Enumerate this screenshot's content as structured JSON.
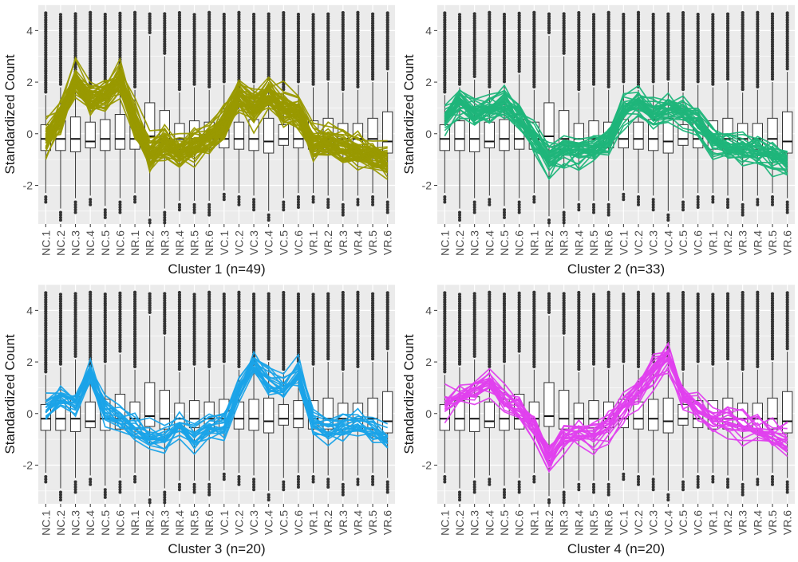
{
  "figure": {
    "colors": {
      "panel_bg": "#ebebeb",
      "grid": "#ffffff",
      "box_fill": "#ffffff",
      "box_line": "#333333",
      "outlier": "#333333",
      "axis_text": "#4d4d4d",
      "label_text": "#1a1a1a"
    },
    "icon": "chart-grid-4-panels"
  },
  "chart_data": [
    {
      "type": "line",
      "title": "",
      "xlabel": "Cluster 1 (n=49)",
      "ylabel": "Standardized Count",
      "series_color": "#999900",
      "n": 49,
      "categories": [
        "NC.1",
        "NC.2",
        "NC.3",
        "NC.4",
        "NC.5",
        "NC.6",
        "NR.1",
        "NR.2",
        "NR.3",
        "NR.4",
        "NR.5",
        "NR.6",
        "VC.1",
        "VC.2",
        "VC.3",
        "VC.4",
        "VC.5",
        "VC.6",
        "VR.1",
        "VR.2",
        "VR.3",
        "VR.4",
        "VR.5",
        "VR.6"
      ],
      "y_ticks": [
        -2,
        0,
        2,
        4
      ],
      "ylim": [
        -3.5,
        5.0
      ],
      "grid": true,
      "legend": "none",
      "profile_mean": [
        -0.2,
        0.5,
        2.0,
        1.3,
        1.4,
        2.0,
        0.4,
        -0.9,
        -0.5,
        -0.8,
        -0.5,
        -0.2,
        0.3,
        1.4,
        1.0,
        1.5,
        1.0,
        0.8,
        -0.4,
        -0.4,
        -0.6,
        -0.7,
        -0.9,
        -1.1
      ],
      "profile_spread": 0.55
    },
    {
      "type": "line",
      "title": "",
      "xlabel": "Cluster 2 (n=33)",
      "ylabel": "Standardized Count",
      "series_color": "#1fb57a",
      "n": 33,
      "categories": [
        "NC.1",
        "NC.2",
        "NC.3",
        "NC.4",
        "NC.5",
        "NC.6",
        "NR.1",
        "NR.2",
        "NR.3",
        "NR.4",
        "NR.5",
        "NR.6",
        "VC.1",
        "VC.2",
        "VC.3",
        "VC.4",
        "VC.5",
        "VC.6",
        "VR.1",
        "VR.2",
        "VR.3",
        "VR.4",
        "VR.5",
        "VR.6"
      ],
      "y_ticks": [
        -2,
        0,
        2,
        4
      ],
      "ylim": [
        -3.5,
        5.0
      ],
      "grid": true,
      "legend": "none",
      "profile_mean": [
        0.6,
        1.2,
        0.8,
        1.0,
        1.2,
        0.6,
        -0.2,
        -1.0,
        -0.6,
        -0.7,
        -0.6,
        -0.3,
        0.9,
        1.2,
        0.8,
        1.0,
        0.8,
        0.4,
        -0.3,
        -0.5,
        -0.6,
        -0.7,
        -0.9,
        -1.1
      ],
      "profile_spread": 0.5
    },
    {
      "type": "line",
      "title": "",
      "xlabel": "Cluster 3 (n=20)",
      "ylabel": "Standardized Count",
      "series_color": "#1aa3e8",
      "n": 20,
      "categories": [
        "NC.1",
        "NC.2",
        "NC.3",
        "NC.4",
        "NC.5",
        "NC.6",
        "NR.1",
        "NR.2",
        "NR.3",
        "NR.4",
        "NR.5",
        "NR.6",
        "VC.1",
        "VC.2",
        "VC.3",
        "VC.4",
        "VC.5",
        "VC.6",
        "VR.1",
        "VR.2",
        "VR.3",
        "VR.4",
        "VR.5",
        "VR.6"
      ],
      "y_ticks": [
        -2,
        0,
        2,
        4
      ],
      "ylim": [
        -3.5,
        5.0
      ],
      "grid": true,
      "legend": "none",
      "profile_mean": [
        0.2,
        0.6,
        0.4,
        1.6,
        0.2,
        -0.2,
        -0.6,
        -0.9,
        -1.0,
        -0.5,
        -0.9,
        -0.5,
        -0.4,
        0.9,
        2.0,
        1.3,
        1.0,
        1.6,
        -0.3,
        -0.6,
        -0.5,
        -0.4,
        -0.6,
        -0.9
      ],
      "profile_spread": 0.45
    },
    {
      "type": "line",
      "title": "",
      "xlabel": "Cluster 4 (n=20)",
      "ylabel": "Standardized Count",
      "series_color": "#e040ee",
      "n": 20,
      "categories": [
        "NC.1",
        "NC.2",
        "NC.3",
        "NC.4",
        "NC.5",
        "NC.6",
        "NR.1",
        "NR.2",
        "NR.3",
        "NR.4",
        "NR.5",
        "NR.6",
        "VC.1",
        "VC.2",
        "VC.3",
        "VC.4",
        "VC.5",
        "VC.6",
        "VR.1",
        "VR.2",
        "VR.3",
        "VR.4",
        "VR.5",
        "VR.6"
      ],
      "y_ticks": [
        -2,
        0,
        2,
        4
      ],
      "ylim": [
        -3.5,
        5.0
      ],
      "grid": true,
      "legend": "none",
      "profile_mean": [
        0.4,
        0.6,
        0.9,
        1.2,
        0.6,
        0.2,
        -0.5,
        -1.8,
        -0.8,
        -0.7,
        -0.8,
        -0.5,
        0.3,
        0.9,
        1.6,
        2.2,
        0.6,
        0.2,
        -0.2,
        -0.3,
        -0.5,
        -0.6,
        -0.8,
        -1.0
      ],
      "profile_spread": 0.5
    }
  ],
  "boxplot_stats": {
    "categories": [
      "NC.1",
      "NC.2",
      "NC.3",
      "NC.4",
      "NC.5",
      "NC.6",
      "NR.1",
      "NR.2",
      "NR.3",
      "NR.4",
      "NR.5",
      "NR.6",
      "VC.1",
      "VC.2",
      "VC.3",
      "VC.4",
      "VC.5",
      "VC.6",
      "VR.1",
      "VR.2",
      "VR.3",
      "VR.4",
      "VR.5",
      "VR.6"
    ],
    "median": [
      -0.2,
      -0.2,
      -0.2,
      -0.3,
      -0.2,
      -0.2,
      -0.2,
      -0.1,
      -0.2,
      -0.2,
      -0.2,
      -0.2,
      -0.2,
      -0.2,
      -0.2,
      -0.3,
      -0.2,
      -0.2,
      -0.2,
      -0.2,
      -0.2,
      -0.2,
      -0.2,
      -0.3
    ],
    "q1": [
      -0.65,
      -0.65,
      -0.7,
      -0.55,
      -0.65,
      -0.6,
      -0.6,
      -0.5,
      -0.6,
      -0.5,
      -0.55,
      -0.55,
      -0.55,
      -0.6,
      -0.65,
      -0.75,
      -0.45,
      -0.55,
      -0.6,
      -0.6,
      -0.6,
      -0.6,
      -0.6,
      -0.75
    ],
    "q3": [
      0.35,
      0.5,
      0.65,
      0.45,
      0.55,
      0.75,
      0.45,
      1.2,
      0.9,
      0.4,
      0.5,
      0.45,
      0.55,
      0.45,
      0.55,
      0.6,
      0.35,
      0.5,
      0.5,
      0.6,
      0.4,
      0.4,
      0.6,
      0.85
    ],
    "whisker_low": [
      -2.3,
      -2.9,
      -2.5,
      -2.4,
      -2.8,
      -2.5,
      -2.3,
      -3.2,
      -2.9,
      -2.6,
      -2.6,
      -2.6,
      -2.2,
      -2.3,
      -2.4,
      -3.0,
      -2.5,
      -2.3,
      -2.3,
      -2.4,
      -2.6,
      -2.4,
      -2.3,
      -2.5
    ],
    "whisker_high": [
      1.5,
      1.8,
      2.1,
      1.7,
      1.9,
      2.3,
      1.7,
      3.8,
      3.0,
      1.6,
      1.8,
      1.7,
      1.9,
      1.7,
      1.9,
      2.0,
      1.6,
      1.9,
      1.8,
      2.0,
      1.6,
      1.7,
      2.0,
      2.4
    ],
    "outlier_top": [
      4.7,
      4.7,
      4.7,
      4.7,
      4.7,
      4.7,
      4.7,
      4.7,
      4.7,
      4.7,
      4.7,
      4.7,
      4.7,
      4.7,
      4.7,
      4.7,
      4.7,
      4.7,
      4.7,
      4.7,
      4.7,
      4.7,
      4.7,
      4.7
    ]
  }
}
